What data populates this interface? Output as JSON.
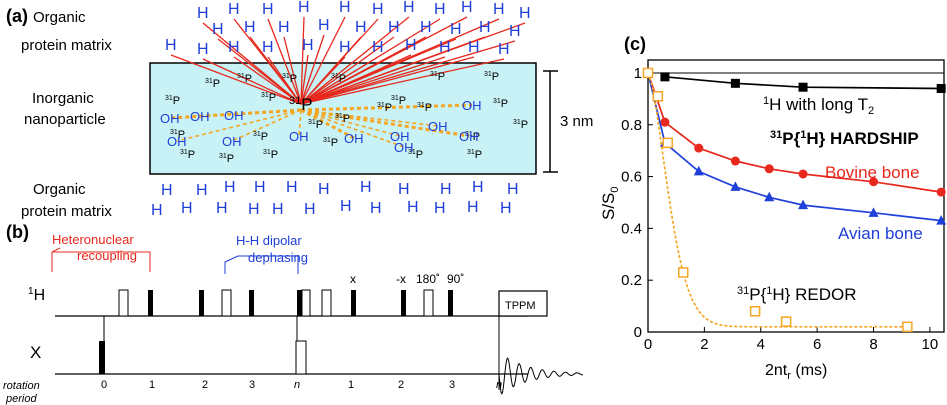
{
  "colors": {
    "hydrogen": "#1f3fd9",
    "phosphorus": "#000000",
    "red": "#e8281c",
    "blue": "#1f3fd9",
    "orange": "#f5a623",
    "nanoparticle_fill": "#c8f2f5",
    "black": "#000000"
  },
  "panel_a": {
    "label": "(a)",
    "top_matrix": [
      "Organic",
      "protein matrix"
    ],
    "nanoparticle": [
      "Inorganic",
      "nanoparticle"
    ],
    "bottom_matrix": [
      "Organic",
      "protein matrix"
    ],
    "thickness_label": "3 nm",
    "center_label_sup": "31",
    "center_label": "P",
    "h_label": "H",
    "oh_label": "OH",
    "p_sup": "31",
    "p_label": "P"
  },
  "panel_b": {
    "label": "(b)",
    "heteronuclear": [
      "Heteronuclear",
      "recoupling"
    ],
    "dipolar": [
      "H-H dipolar",
      "dephasing"
    ],
    "channel_h_sup": "1",
    "channel_h": "H",
    "channel_x": "X",
    "phase_x": "x",
    "phase_mx": "-x",
    "angle_180": "180˚",
    "angle_90": "90˚",
    "tppm": "TPPM",
    "rotation_label": [
      "rotation",
      "period"
    ],
    "ticks_left": [
      "0",
      "1",
      "2",
      "3",
      "n"
    ],
    "ticks_right": [
      "1",
      "2",
      "3",
      "n"
    ]
  },
  "panel_c": {
    "label": "(c)",
    "long_t2_sup": "1",
    "long_t2_main": "H with long T",
    "long_t2_sub": "2",
    "hardship_sup": "31",
    "hardship_main": "P{",
    "hardship_sup2": "1",
    "hardship_rest": "H} HARDSHIP",
    "bovine_label": "Bovine bone",
    "avian_label": "Avian bone",
    "redor_sup": "31",
    "redor_main": "P{",
    "redor_sup2": "1",
    "redor_rest": "H} REDOR",
    "ylabel_main": "S/S",
    "ylabel_sub": "0",
    "xlabel_main": "2nt",
    "xlabel_sub": "r",
    "xlabel_unit": " (ms)"
  },
  "chart_data": {
    "type": "line",
    "xlim": [
      0,
      10.5
    ],
    "ylim": [
      0,
      1.05
    ],
    "xticks": [
      0,
      2,
      4,
      6,
      8,
      10
    ],
    "yticks": [
      0,
      0.2,
      0.4,
      0.6,
      0.8,
      1
    ],
    "xlabel": "2ntr (ms)",
    "ylabel": "S/S0",
    "series": [
      {
        "name": "1H with long T2",
        "color": "#000000",
        "marker": "square",
        "line": "solid",
        "x": [
          0.6,
          3.1,
          5.5,
          10.4
        ],
        "y": [
          0.985,
          0.96,
          0.945,
          0.94
        ]
      },
      {
        "name": "Bovine bone",
        "color": "#e8281c",
        "marker": "circle",
        "line": "solid",
        "x": [
          0,
          0.6,
          1.8,
          3.1,
          4.3,
          5.5,
          8.0,
          10.4
        ],
        "y": [
          1.0,
          0.81,
          0.71,
          0.66,
          0.63,
          0.61,
          0.58,
          0.54
        ]
      },
      {
        "name": "Avian bone",
        "color": "#1f3fd9",
        "marker": "triangle",
        "line": "solid",
        "x": [
          0,
          0.6,
          1.8,
          3.1,
          4.3,
          5.5,
          8.0,
          10.4
        ],
        "y": [
          1.0,
          0.73,
          0.62,
          0.56,
          0.52,
          0.49,
          0.46,
          0.43
        ]
      },
      {
        "name": "31P{1H} REDOR",
        "color": "#f5a623",
        "marker": "open-square",
        "line": "dotted",
        "x": [
          0,
          0.35,
          0.7,
          1.25,
          3.8,
          4.9,
          9.2
        ],
        "y": [
          1.0,
          0.91,
          0.73,
          0.23,
          0.08,
          0.04,
          0.02
        ]
      }
    ]
  }
}
